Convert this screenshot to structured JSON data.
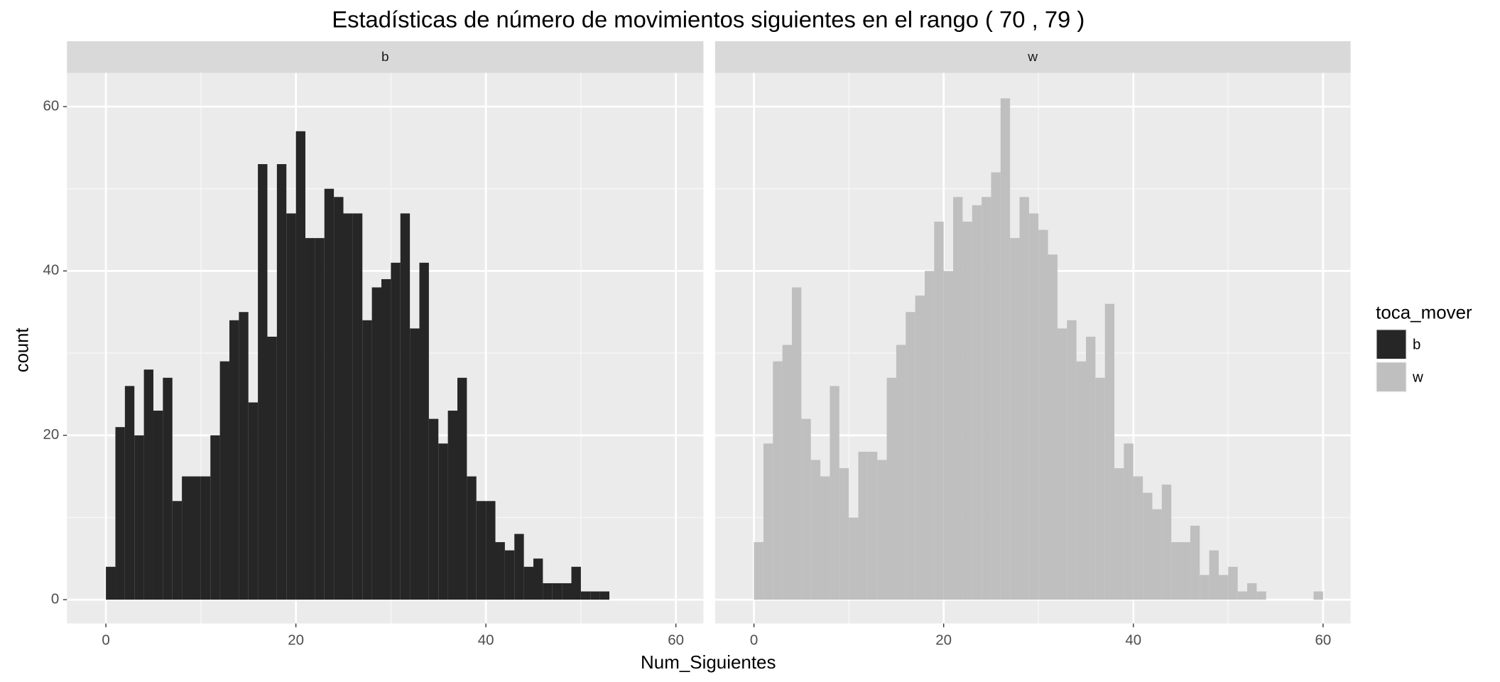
{
  "chart_data": {
    "type": "histogram",
    "title": "Estadísticas de número de movimientos siguientes en el rango ( 70 , 79 )",
    "x_label": "Num_Siguientes",
    "y_label": "count",
    "legend_title": "toca_mover",
    "grid": true,
    "bins": [
      0,
      1,
      2,
      3,
      4,
      5,
      6,
      7,
      8,
      9,
      10,
      11,
      12,
      13,
      14,
      15,
      16,
      17,
      18,
      19,
      20,
      21,
      22,
      23,
      24,
      25,
      26,
      27,
      28,
      29,
      30,
      31,
      32,
      33,
      34,
      35,
      36,
      37,
      38,
      39,
      40,
      41,
      42,
      43,
      44,
      45,
      46,
      47,
      48,
      49,
      50,
      51,
      52,
      53,
      54,
      55,
      56,
      57,
      58,
      59,
      60
    ],
    "xlim": [
      -4.1,
      62.9
    ],
    "xticks": [
      0,
      20,
      40,
      60
    ],
    "ylim": [
      -2.9,
      64.1
    ],
    "yticks": [
      0,
      20,
      40,
      60
    ],
    "series": [
      {
        "name": "b",
        "color": "#262626",
        "values": [
          4,
          21,
          26,
          20,
          28,
          23,
          27,
          12,
          15,
          15,
          15,
          20,
          29,
          34,
          35,
          24,
          53,
          32,
          53,
          47,
          57,
          44,
          44,
          50,
          49,
          47,
          47,
          34,
          38,
          39,
          41,
          47,
          33,
          41,
          22,
          19,
          23,
          27,
          15,
          12,
          12,
          7,
          6,
          8,
          4,
          5,
          2,
          2,
          2,
          4,
          1,
          1,
          1,
          null,
          null,
          null,
          null,
          null,
          null,
          null
        ]
      },
      {
        "name": "w",
        "color": "#bfbfbf",
        "values": [
          7,
          19,
          29,
          31,
          38,
          22,
          17,
          15,
          26,
          16,
          10,
          18,
          18,
          17,
          27,
          31,
          35,
          37,
          40,
          46,
          40,
          49,
          46,
          48,
          49,
          52,
          61,
          44,
          49,
          47,
          45,
          42,
          33,
          34,
          29,
          32,
          27,
          36,
          16,
          19,
          15,
          13,
          11,
          14,
          7,
          7,
          9,
          3,
          6,
          3,
          4,
          1,
          2,
          1,
          0,
          0,
          0,
          0,
          0,
          1
        ]
      }
    ]
  }
}
